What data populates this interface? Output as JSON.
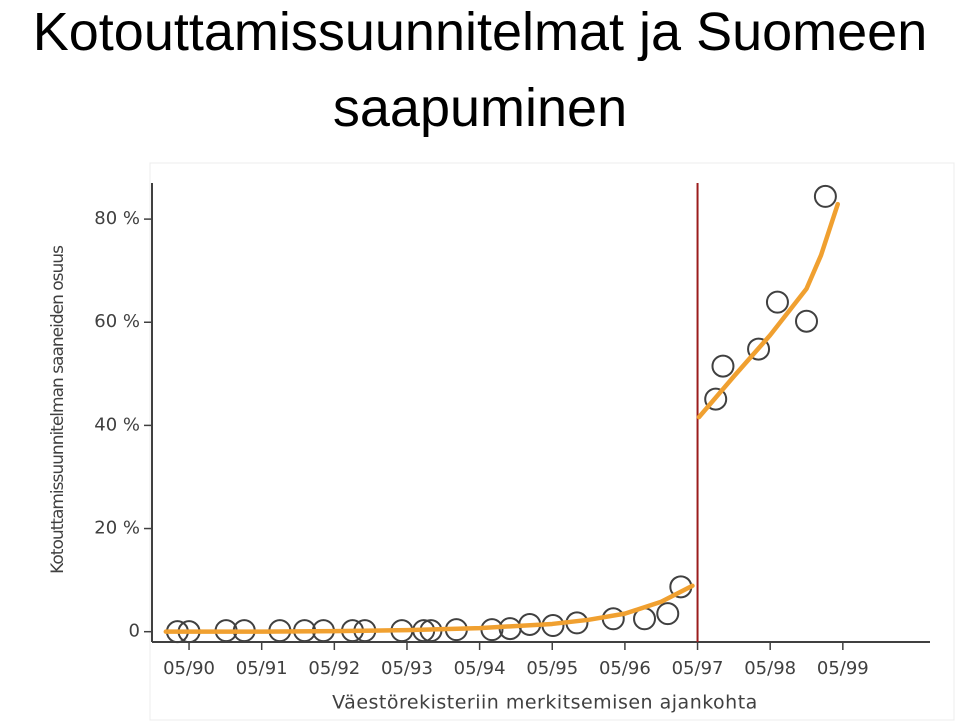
{
  "chart_data": {
    "type": "scatter",
    "title": "Kotouttamissuunnitelmat ja Suomeen saapuminen",
    "xlabel": "Väestörekisteriin merkitsemisen ajankohta",
    "ylabel": "Kotouttamissuunnitelman saaneiden osuus",
    "x": [
      1989.84,
      1990.0,
      1990.51,
      1990.76,
      1991.25,
      1991.59,
      1991.85,
      1992.25,
      1992.42,
      1992.93,
      1993.23,
      1993.33,
      1993.68,
      1994.17,
      1994.42,
      1994.69,
      1995.01,
      1995.34,
      1995.84,
      1996.27,
      1996.59,
      1996.77,
      1997.25,
      1997.35,
      1997.84,
      1998.1,
      1998.5,
      1998.76
    ],
    "values": [
      0,
      0,
      0.2,
      0.2,
      0.2,
      0.2,
      0.2,
      0.2,
      0.2,
      0.2,
      0.2,
      0.2,
      0.4,
      0.4,
      0.6,
      1.4,
      1.2,
      1.7,
      2.5,
      2.5,
      3.5,
      8.7,
      45.1,
      51.5,
      54.8,
      63.9,
      60.2,
      84.4
    ],
    "marker_color": "#404040",
    "fits": [
      {
        "color": "#f0a030",
        "x": [
          1989.68,
          1991.0,
          1992.0,
          1993.0,
          1994.0,
          1995.0,
          1995.5,
          1996.0,
          1996.5,
          1996.93
        ],
        "values": [
          0,
          0,
          0.1,
          0.3,
          0.7,
          1.5,
          2.3,
          3.5,
          5.8,
          8.9
        ]
      },
      {
        "color": "#f0a030",
        "x": [
          1997.02,
          1997.5,
          1998.0,
          1998.5,
          1998.7,
          1998.93
        ],
        "values": [
          41.6,
          49.5,
          57.5,
          66.5,
          73,
          82.9
        ]
      }
    ],
    "vline": {
      "x": 1997.0,
      "color": "#9b1c1c"
    },
    "xlim": [
      1989.49,
      2000.2
    ],
    "ylim": [
      -2,
      87
    ],
    "xticks": [
      {
        "value": 1990,
        "label": "05/90"
      },
      {
        "value": 1991,
        "label": "05/91"
      },
      {
        "value": 1992,
        "label": "05/92"
      },
      {
        "value": 1993,
        "label": "05/93"
      },
      {
        "value": 1994,
        "label": "05/94"
      },
      {
        "value": 1995,
        "label": "05/95"
      },
      {
        "value": 1996,
        "label": "05/96"
      },
      {
        "value": 1997,
        "label": "05/97"
      },
      {
        "value": 1998,
        "label": "05/98"
      },
      {
        "value": 1999,
        "label": "05/99"
      }
    ],
    "yticks": [
      0,
      {
        "value": 20,
        "label": "20 %"
      },
      {
        "value": 40,
        "label": "40 %"
      },
      {
        "value": 60,
        "label": "60 %"
      },
      {
        "value": 80,
        "label": "80 %"
      }
    ]
  }
}
